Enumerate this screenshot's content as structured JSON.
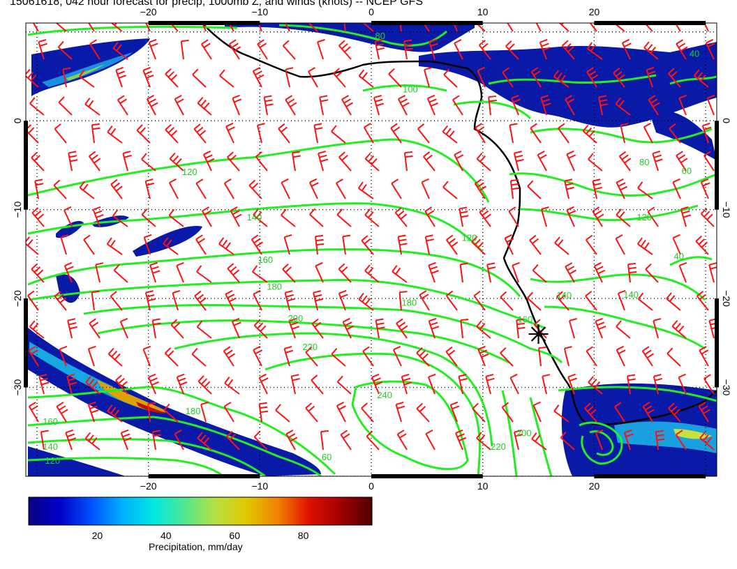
{
  "title": "15061618, 042 hour forecast for precip, 1000mb Z, and winds (knots) -- NCEP GFS",
  "map": {
    "lon_range": [
      -31,
      31
    ],
    "lat_range": [
      -40,
      11
    ],
    "lon_ticks": [
      -20,
      -10,
      0,
      10,
      20
    ],
    "lat_ticks": [
      0,
      -10,
      -20,
      -30
    ],
    "lon_tick_labels": [
      "−20",
      "−10",
      "0",
      "10",
      "20"
    ],
    "lat_tick_labels": [
      "0",
      "−10",
      "−20",
      "−30"
    ],
    "contour_labels": [
      {
        "text": "80",
        "lon": 0.8,
        "lat": 9.2
      },
      {
        "text": "100",
        "lon": 3.5,
        "lat": 3.2
      },
      {
        "text": "120",
        "lon": -16.3,
        "lat": -6.1
      },
      {
        "text": "140",
        "lon": -10.5,
        "lat": -11.2
      },
      {
        "text": "160",
        "lon": -9.5,
        "lat": -16.0
      },
      {
        "text": "180",
        "lon": -8.7,
        "lat": -19.0
      },
      {
        "text": "200",
        "lon": -6.8,
        "lat": -22.6
      },
      {
        "text": "220",
        "lon": -5.5,
        "lat": -25.8
      },
      {
        "text": "240",
        "lon": 1.2,
        "lat": -31.2
      },
      {
        "text": "120",
        "lon": 8.8,
        "lat": -13.5
      },
      {
        "text": "180",
        "lon": 3.4,
        "lat": -20.8
      },
      {
        "text": "160",
        "lon": 13.8,
        "lat": -22.7
      },
      {
        "text": "140",
        "lon": 17.3,
        "lat": -20.0
      },
      {
        "text": "140",
        "lon": 23.3,
        "lat": -19.9
      },
      {
        "text": "120",
        "lon": 24.5,
        "lat": -11.2
      },
      {
        "text": "80",
        "lon": 24.5,
        "lat": -5.0
      },
      {
        "text": "60",
        "lon": 28.3,
        "lat": -6.0
      },
      {
        "text": "40",
        "lon": 27.6,
        "lat": -15.6
      },
      {
        "text": "180",
        "lon": -16.0,
        "lat": -33.0
      },
      {
        "text": "160",
        "lon": -28.8,
        "lat": -34.2
      },
      {
        "text": "140",
        "lon": -28.8,
        "lat": -37.0
      },
      {
        "text": "120",
        "lon": -28.6,
        "lat": -38.6
      },
      {
        "text": "60",
        "lon": -4.0,
        "lat": -38.2
      },
      {
        "text": "220",
        "lon": 11.4,
        "lat": -37.0
      },
      {
        "text": "200",
        "lon": 13.7,
        "lat": -35.5
      },
      {
        "text": "40",
        "lon": 29.0,
        "lat": 7.2
      }
    ],
    "location_marker": {
      "lon": 15.0,
      "lat": -24.0
    }
  },
  "colorbar": {
    "label": "Precipitation, mm/day",
    "tick_labels": [
      "20",
      "40",
      "60",
      "80"
    ],
    "tick_values": [
      20,
      40,
      60,
      80
    ],
    "range": [
      0,
      100
    ],
    "colors": [
      "#080080",
      "#0000c8",
      "#0050ff",
      "#00b0ff",
      "#00e8e0",
      "#50e890",
      "#b8e040",
      "#e0c800",
      "#f08000",
      "#e01000",
      "#a00000",
      "#500000"
    ]
  },
  "colors": {
    "contour": "#22ee22",
    "wind_barb": "#ff1111",
    "coastline": "#000000",
    "grid": "#000000"
  }
}
